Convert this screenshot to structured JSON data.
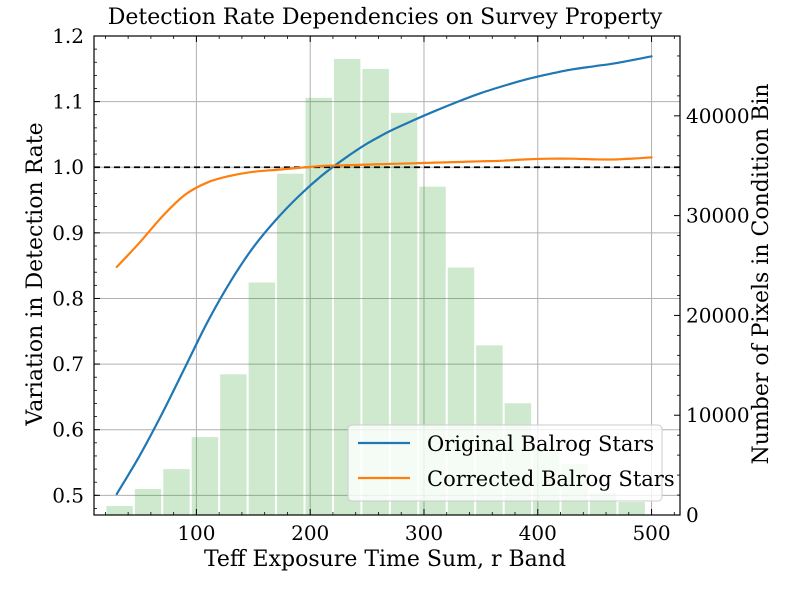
{
  "chart_data": {
    "type": "bar+line",
    "title": "Detection Rate Dependencies on Survey Property",
    "xlabel": "Teff Exposure Time Sum, r Band",
    "ylabel_left": "Variation in Detection Rate",
    "ylabel_right": "Number of Pixels in Condition Bin",
    "xlim": [
      10,
      525
    ],
    "ylim_left": [
      0.47,
      1.2
    ],
    "ylim_right": [
      0,
      48000
    ],
    "x_ticks": [
      100,
      200,
      300,
      400,
      500
    ],
    "y_left_ticks": [
      "0.5",
      "0.6",
      "0.7",
      "0.8",
      "0.9",
      "1.0",
      "1.1",
      "1.2"
    ],
    "y_right_ticks": [
      "0",
      "10000",
      "20000",
      "30000",
      "40000"
    ],
    "reference_line": {
      "y": 1.0,
      "style": "dashed",
      "color": "#000000"
    },
    "grid": true,
    "legend_position": "lower right",
    "histogram": {
      "color": "#2ca02c",
      "alpha": 0.23,
      "bin_edges": [
        20,
        45,
        70,
        95,
        120,
        145,
        170,
        195,
        220,
        245,
        270,
        295,
        320,
        345,
        370,
        395,
        420,
        445,
        470,
        495
      ],
      "counts": [
        900,
        2600,
        4600,
        7800,
        14100,
        23300,
        34200,
        41800,
        45700,
        44700,
        40300,
        32900,
        24800,
        17000,
        11200,
        6600,
        5100,
        2200,
        1300
      ]
    },
    "series": [
      {
        "name": "Original Balrog Stars",
        "color": "#1f77b4",
        "x": [
          30,
          50,
          70,
          90,
          110,
          130,
          150,
          170,
          190,
          210,
          230,
          250,
          270,
          290,
          310,
          330,
          350,
          370,
          390,
          410,
          430,
          450,
          470,
          500
        ],
        "y": [
          0.502,
          0.56,
          0.625,
          0.695,
          0.765,
          0.826,
          0.878,
          0.92,
          0.956,
          0.987,
          1.013,
          1.036,
          1.055,
          1.071,
          1.086,
          1.1,
          1.113,
          1.124,
          1.134,
          1.142,
          1.149,
          1.154,
          1.159,
          1.169
        ]
      },
      {
        "name": "Corrected Balrog Stars",
        "color": "#ff7f0e",
        "x": [
          30,
          50,
          70,
          90,
          110,
          130,
          150,
          170,
          190,
          210,
          230,
          250,
          270,
          290,
          310,
          330,
          350,
          370,
          390,
          410,
          430,
          450,
          470,
          500
        ],
        "y": [
          0.848,
          0.885,
          0.925,
          0.958,
          0.977,
          0.987,
          0.993,
          0.996,
          0.999,
          1.002,
          1.003,
          1.004,
          1.005,
          1.006,
          1.007,
          1.008,
          1.009,
          1.01,
          1.012,
          1.013,
          1.013,
          1.012,
          1.012,
          1.015
        ]
      }
    ]
  }
}
